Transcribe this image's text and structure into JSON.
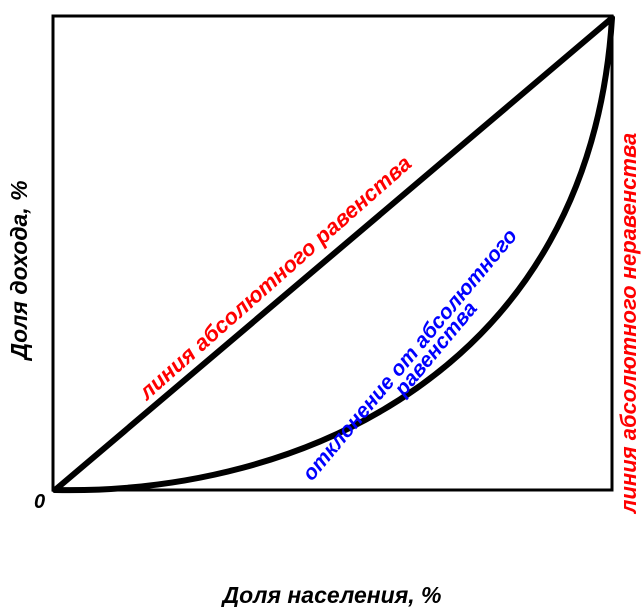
{
  "labels": {
    "origin": "0",
    "x_axis": "Доля населения, %",
    "y_axis": "Доля дохода, %",
    "equality_line": "линия абсолютного равенства",
    "deviation_line1": "отклонение от  абсолютного",
    "deviation_line2": "равенства",
    "inequality_line": "линия абсолютного неравенства"
  },
  "colors": {
    "frame": "#000000",
    "curve": "#000000",
    "axis_text": "#000000",
    "equality_text": "#ff0000",
    "deviation_text": "#0000ff",
    "inequality_text": "#ff0000"
  }
}
